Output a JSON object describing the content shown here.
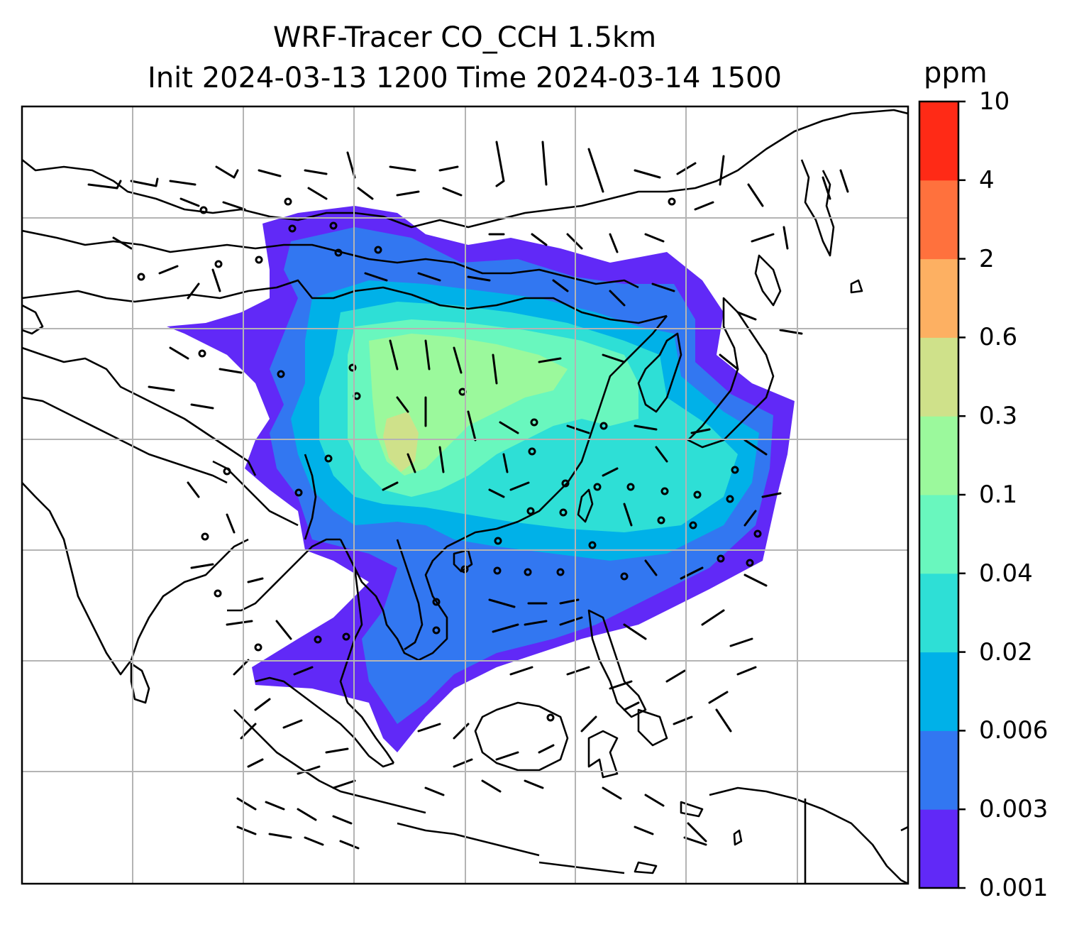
{
  "title": {
    "line1": "WRF-Tracer CO_CCH 1.5km",
    "line2": "Init 2024-03-13 1200 Time 2024-03-14 1500"
  },
  "colorbar": {
    "units": "ppm",
    "levels": [
      "0.001",
      "0.003",
      "0.006",
      "0.02",
      "0.04",
      "0.1",
      "0.3",
      "0.6",
      "2",
      "4",
      "10"
    ],
    "colors": [
      "#6129f7",
      "#3277f1",
      "#00b1e8",
      "#2edfd6",
      "#69f7be",
      "#9bf99c",
      "#cfe18a",
      "#fdb062",
      "#ff713d",
      "#ff2a16"
    ]
  },
  "map": {
    "projection": "Lambert conformal",
    "region": "East and Southeast Asia",
    "field": "CO tracer concentration (filled contours)",
    "overlays": [
      "coastlines",
      "country borders",
      "lat-lon gridlines",
      "wind barbs"
    ],
    "gridline_color": "#b4b4b4"
  }
}
